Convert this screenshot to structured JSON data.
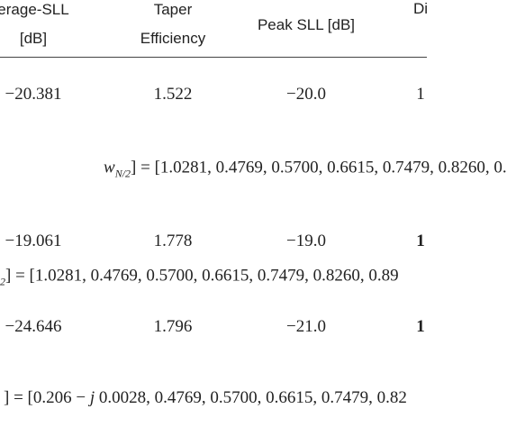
{
  "table": {
    "header": [
      [
        "erage-SLL",
        "[dB]"
      ],
      [
        "Taper",
        "Efficiency"
      ],
      [
        "Peak SLL [dB]"
      ],
      [
        "Di"
      ]
    ],
    "rows": [
      [
        "−20.381",
        "1.522",
        "−20.0",
        "1"
      ],
      [
        "−19.061",
        "1.778",
        "−19.0",
        "1"
      ],
      [
        "−24.646",
        "1.796",
        "−21.0",
        "1"
      ]
    ],
    "bold_last": [
      false,
      true,
      true
    ],
    "formulas": [
      [
        {
          "t": "w",
          "i": true
        },
        {
          "t": "N/2",
          "sub": true
        },
        {
          "t": "] = [1.0281, 0.4769, 0.5700, 0.6615, 0.7479, 0.8260, 0."
        }
      ],
      [
        {
          "t": "2",
          "sub": true
        },
        {
          "t": "] = [1.0281, 0.4769, 0.5700, 0.6615, 0.7479, 0.8260, 0.89"
        }
      ],
      [
        {
          "t": "] = [0.206 − "
        },
        {
          "t": "j",
          "i": true
        },
        {
          "t": " 0.0028, 0.4769, 0.5700, 0.6615, 0.7479, 0.82"
        }
      ]
    ]
  }
}
